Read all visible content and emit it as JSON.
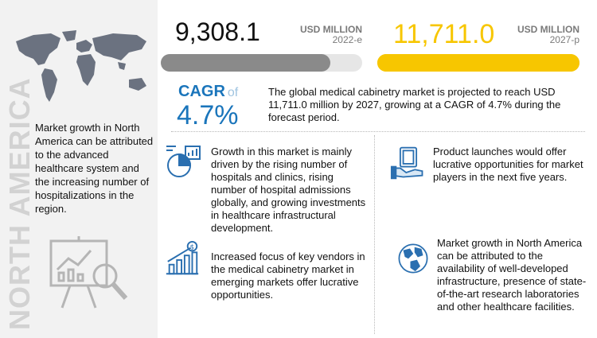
{
  "region_label": "NORTH AMERICA",
  "left_text": "Market growth in North America can be attributed to the advanced healthcare system and the increasing number of hospitalizations in the region.",
  "market_2022": {
    "value": "9,308.1",
    "unit": "USD MILLION",
    "year": "2022-e",
    "bar_color": "#8a8a8a"
  },
  "market_2027": {
    "value": "11,711.0",
    "unit": "USD MILLION",
    "year": "2027-p",
    "bar_color": "#f7c600"
  },
  "cagr": {
    "label": "CAGR",
    "of": "of",
    "value": "4.7%"
  },
  "summary": "The global medical cabinetry market is projected to reach USD 11,711.0 million by 2027, growing at a CAGR of 4.7% during the forecast period.",
  "items": [
    {
      "text": "Growth in this market is mainly driven by the rising number of hospitals and clinics, rising number of hospital admissions globally, and growing investments in healthcare infrastructural development.",
      "icon": "analytics-icon"
    },
    {
      "text": "Product launches would offer lucrative opportunities for market players in the next five years.",
      "icon": "money-hand-icon"
    },
    {
      "text": "Increased focus of key vendors in the medical cabinetry market in emerging markets offer lucrative opportunities.",
      "icon": "growth-chart-icon"
    },
    {
      "text": "Market growth in North America can be attributed to the availability of well-developed infrastructure, presence of state-of-the-art research laboratories and other healthcare facilities.",
      "icon": "globe-icon"
    }
  ],
  "colors": {
    "accent_blue": "#1a75bb",
    "yellow": "#f7c600",
    "gray_bar": "#8a8a8a"
  }
}
